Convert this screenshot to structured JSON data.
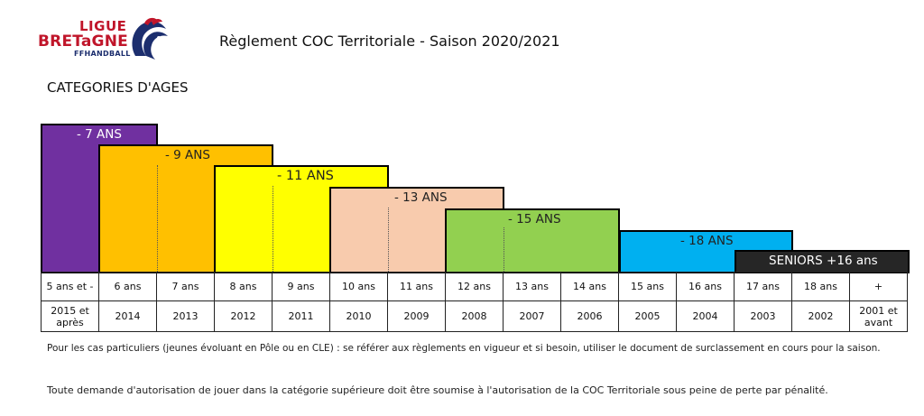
{
  "logo": {
    "line1": "LIGUE",
    "line2": "BRETaGNE",
    "line3": "FFHANDBALL"
  },
  "header": {
    "title": "Règlement COC Territoriale - Saison 2020/2021"
  },
  "section": {
    "title": "CATEGORIES D'AGES"
  },
  "categories": [
    {
      "label": "- 7 ANS",
      "color": "#7030a0",
      "text_color": "#ffffff"
    },
    {
      "label": "- 9 ANS",
      "color": "#ffc000",
      "text_color": "#222222"
    },
    {
      "label": "- 11 ANS",
      "color": "#ffff00",
      "text_color": "#222222"
    },
    {
      "label": "- 13 ANS",
      "color": "#f8cbad",
      "text_color": "#222222"
    },
    {
      "label": "- 15 ANS",
      "color": "#92d050",
      "text_color": "#222222"
    },
    {
      "label": "- 18 ANS",
      "color": "#00b0f0",
      "text_color": "#222222"
    },
    {
      "label": "SENIORS +16 ans",
      "color": "#262626",
      "text_color": "#ffffff"
    }
  ],
  "table": {
    "ages": [
      "5 ans et -",
      "6 ans",
      "7 ans",
      "8 ans",
      "9 ans",
      "10 ans",
      "11 ans",
      "12 ans",
      "13 ans",
      "14 ans",
      "15 ans",
      "16 ans",
      "17 ans",
      "18 ans",
      "+"
    ],
    "years": [
      "2015 et après",
      "2014",
      "2013",
      "2012",
      "2011",
      "2010",
      "2009",
      "2008",
      "2007",
      "2006",
      "2005",
      "2004",
      "2003",
      "2002",
      "2001 et avant"
    ]
  },
  "notes": {
    "line1": "Pour les cas particuliers (jeunes évoluant en Pôle ou en CLE) : se référer aux règlements en vigueur et si besoin, utiliser le document de surclassement en cours pour la saison.",
    "line2": "Toute demande d'autorisation de jouer dans la catégorie supérieure doit être soumise à l'autorisation de la COC Territoriale sous peine de perte par pénalité."
  }
}
